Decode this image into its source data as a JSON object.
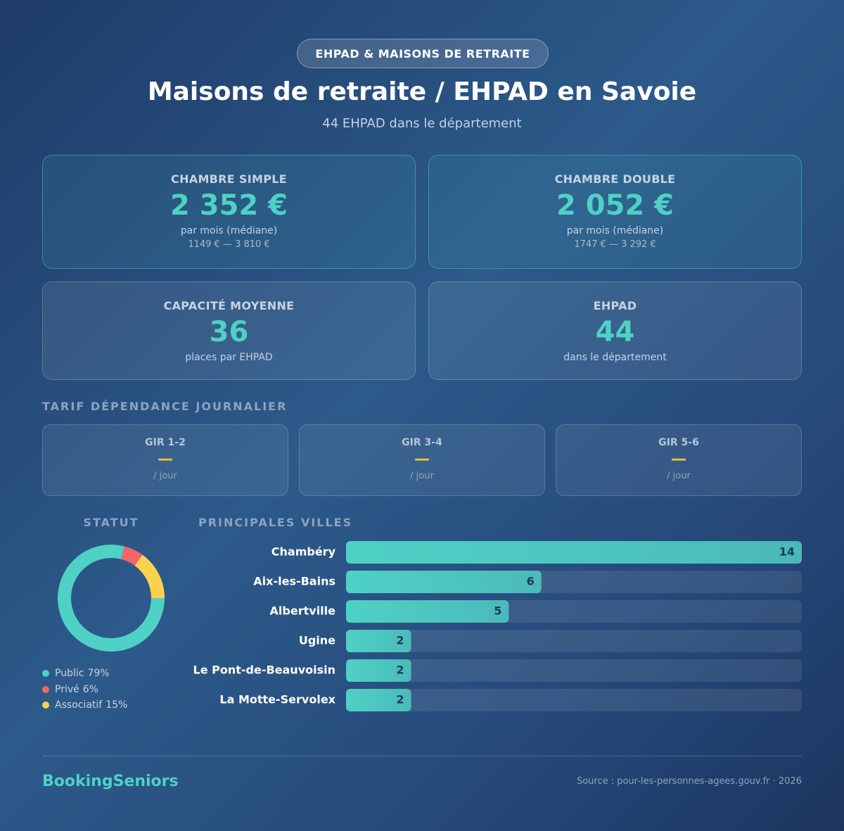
{
  "badge": "EHPAD & MAISONS DE RETRAITE",
  "title": "Maisons de retraite / EHPAD en Savoie",
  "subtitle": "44 EHPAD dans le département",
  "cards": [
    {
      "label": "CHAMBRE SIMPLE",
      "value": "2 352 €",
      "note": "par mois (médiane)",
      "range": "1149 € — 3 810 €"
    },
    {
      "label": "CHAMBRE DOUBLE",
      "value": "2 052 €",
      "note": "par mois (médiane)",
      "range": "1747 € — 3 292 €"
    },
    {
      "label": "CAPACITÉ MOYENNE",
      "value": "36",
      "note": "places par EHPAD"
    },
    {
      "label": "EHPAD",
      "value": "44",
      "note": "dans le département"
    }
  ],
  "tarif_title": "TARIF DÉPENDANCE JOURNALIER",
  "gir": [
    {
      "label": "GIR 1-2",
      "value": "—",
      "unit": "/ jour"
    },
    {
      "label": "GIR 3-4",
      "value": "—",
      "unit": "/ jour"
    },
    {
      "label": "GIR 5-6",
      "value": "—",
      "unit": "/ jour"
    }
  ],
  "chart_data": [
    {
      "type": "pie",
      "donut": true,
      "title": "STATUT",
      "categories": [
        "Public",
        "Privé",
        "Associatif"
      ],
      "values": [
        79,
        6,
        15
      ],
      "value_labels": [
        "79%",
        "6%",
        "15%"
      ],
      "colors": [
        "#4fd1c5",
        "#f56565",
        "#fbd24e"
      ]
    },
    {
      "type": "bar",
      "orientation": "horizontal",
      "title": "PRINCIPALES VILLES",
      "categories": [
        "Chambéry",
        "Aix-les-Bains",
        "Albertville",
        "Ugine",
        "Le Pont-de-Beauvoisin",
        "La Motte-Servolex"
      ],
      "values": [
        14,
        6,
        5,
        2,
        2,
        2
      ],
      "xlim": [
        0,
        14
      ],
      "color": "#4fd1c5"
    }
  ],
  "footer": {
    "brand": "BookingSeniors",
    "source": "Source : pour-les-personnes-agees.gouv.fr · 2026"
  }
}
